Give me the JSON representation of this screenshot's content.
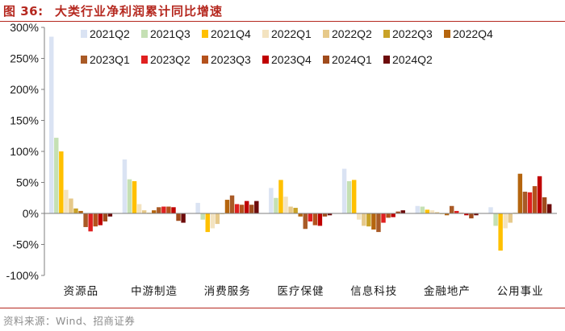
{
  "header": {
    "figure_number": "图 36:",
    "title": "大类行业净利润累计同比增速"
  },
  "footer": {
    "source": "资料来源：Wind、招商证券"
  },
  "chart_data": {
    "type": "bar",
    "title": "大类行业净利润累计同比增速",
    "xlabel": "",
    "ylabel": "",
    "ylim": [
      -100,
      300
    ],
    "y_ticks": [
      -100,
      -50,
      0,
      50,
      100,
      150,
      200,
      250,
      300
    ],
    "y_tick_labels": [
      "-100%",
      "-50%",
      "0%",
      "50%",
      "100%",
      "150%",
      "200%",
      "250%",
      "300%"
    ],
    "grid": false,
    "legend_position": "top",
    "categories": [
      "资源品",
      "中游制造",
      "消费服务",
      "医疗保健",
      "信息科技",
      "金融地产",
      "公用事业"
    ],
    "series": [
      {
        "name": "2021Q2",
        "color": "#dae3f3",
        "values": [
          285,
          87,
          17,
          41,
          72,
          12,
          10
        ]
      },
      {
        "name": "2021Q3",
        "color": "#c5e0b4",
        "values": [
          122,
          55,
          -10,
          25,
          52,
          11,
          -20
        ]
      },
      {
        "name": "2021Q4",
        "color": "#ffc000",
        "values": [
          100,
          52,
          -30,
          54,
          54,
          6,
          -60
        ]
      },
      {
        "name": "2022Q1",
        "color": "#f3e3c0",
        "values": [
          38,
          15,
          -24,
          27,
          -10,
          5,
          -24
        ]
      },
      {
        "name": "2022Q2",
        "color": "#e6c98a",
        "values": [
          24,
          5,
          -17,
          11,
          -20,
          2,
          -15
        ]
      },
      {
        "name": "2022Q3",
        "color": "#c9a227",
        "values": [
          8,
          1,
          -1,
          9,
          -21,
          -1,
          1
        ]
      },
      {
        "name": "2022Q4",
        "color": "#b5650e",
        "values": [
          4,
          5,
          22,
          -5,
          -26,
          -3,
          64
        ]
      },
      {
        "name": "2023Q1",
        "color": "#a95a26",
        "values": [
          -22,
          10,
          29,
          -25,
          -30,
          12,
          35
        ]
      },
      {
        "name": "2023Q2",
        "color": "#e02020",
        "values": [
          -29,
          11,
          15,
          -13,
          -15,
          4,
          34
        ]
      },
      {
        "name": "2023Q3",
        "color": "#b4511c",
        "values": [
          -21,
          11,
          14,
          -19,
          -7,
          1,
          44
        ]
      },
      {
        "name": "2023Q4",
        "color": "#c00000",
        "values": [
          -19,
          10,
          20,
          -20,
          -6,
          -3,
          60
        ]
      },
      {
        "name": "2024Q1",
        "color": "#a04b1c",
        "values": [
          -13,
          -12,
          14,
          -5,
          3,
          -8,
          26
        ]
      },
      {
        "name": "2024Q2",
        "color": "#6d0b0b",
        "values": [
          -5,
          -15,
          20,
          -3,
          5,
          -3,
          15
        ]
      }
    ]
  }
}
